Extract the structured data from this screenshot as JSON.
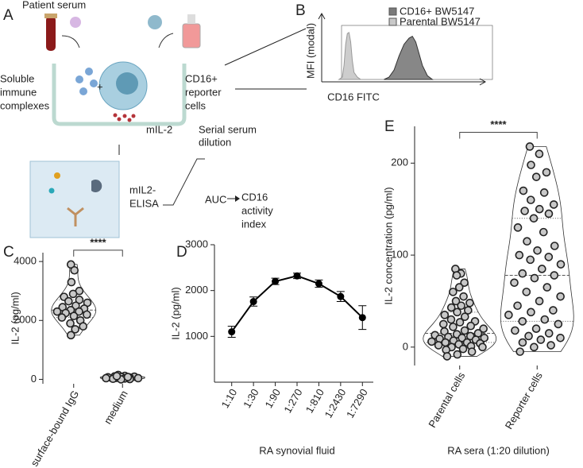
{
  "diagram": {
    "panel": "A",
    "patient_serum": "Patient serum",
    "immune_complexes": [
      "Soluble",
      "immune",
      "complexes"
    ],
    "reporter_cells": [
      "CD16+",
      "reporter",
      "cells"
    ],
    "mil2": "mIL-2",
    "serial_dilution": [
      "Serial serum",
      "dilution"
    ],
    "elisa": [
      "mIL2-",
      "ELISA"
    ],
    "auc": "AUC",
    "index": [
      "CD16",
      "activity",
      "index"
    ]
  },
  "chart_data": [
    {
      "type": "histogram-overlay",
      "panel": "B",
      "y_label": "MFI (modal)",
      "x_label": "CD16 FITC",
      "xlim": [
        0,
        100
      ],
      "ylim": [
        0,
        105
      ],
      "series": [
        {
          "name": "CD16+ BW5147",
          "color": "#7a7a7a",
          "x": [
            35,
            38,
            41,
            44,
            47,
            50,
            52,
            54,
            56,
            58,
            61,
            64
          ],
          "values": [
            0,
            5,
            20,
            50,
            75,
            88,
            92,
            80,
            55,
            30,
            8,
            0
          ]
        },
        {
          "name": "Parental BW5147",
          "color": "#c8c8c8",
          "x": [
            8,
            10,
            11,
            12,
            13,
            14,
            15,
            16,
            17,
            19,
            21
          ],
          "values": [
            0,
            5,
            30,
            75,
            98,
            100,
            80,
            40,
            15,
            5,
            0
          ]
        }
      ]
    },
    {
      "type": "violin",
      "panel": "C",
      "y_label": "IL-2 (pg/ml)",
      "significance": "****",
      "ylim": [
        -150,
        4300
      ],
      "yticks": [
        0,
        2000,
        4000
      ],
      "categories": [
        "surface-bound IgG",
        "medium"
      ],
      "series": [
        {
          "name": null,
          "color": "#c8c8c8",
          "values": [
            3900,
            3700,
            3300,
            3000,
            2900,
            2800,
            2700,
            2650,
            2600,
            2500,
            2450,
            2400,
            2350,
            2300,
            2300,
            2250,
            2200,
            2150,
            2100,
            2000,
            1900,
            1800,
            1700,
            1500
          ]
        },
        {
          "name": null,
          "color": "#c8c8c8",
          "values": [
            150,
            120,
            100,
            90,
            80,
            70,
            60,
            50,
            40,
            30,
            20,
            10,
            0,
            40,
            80,
            110
          ]
        }
      ]
    },
    {
      "type": "line-error",
      "panel": "D",
      "y_label": "IL-2 (pg/ml)",
      "x_label": "RA synovial fluid",
      "ylim": [
        0,
        3000
      ],
      "yticks": [
        1000,
        2000,
        3000
      ],
      "categories": [
        "1:10",
        "1:30",
        "1:90",
        "1:270",
        "1:810",
        "1:2430",
        "1:7290"
      ],
      "values": [
        1100,
        1760,
        2200,
        2320,
        2150,
        1870,
        1410
      ],
      "errors": [
        120,
        100,
        70,
        60,
        80,
        110,
        260
      ],
      "color": "#000000"
    },
    {
      "type": "violin",
      "panel": "E",
      "y_label": "IL-2 concentration (pg/ml)",
      "x_label": "RA sera (1:20 dilution)",
      "significance": "****",
      "ylim": [
        -20,
        240
      ],
      "yticks": [
        0,
        100,
        200
      ],
      "categories": [
        "Parental cells",
        "Reporter cells"
      ],
      "series": [
        {
          "name": null,
          "color": "#c8c8c8",
          "values": [
            85,
            80,
            78,
            70,
            65,
            60,
            55,
            50,
            48,
            45,
            43,
            40,
            38,
            35,
            33,
            30,
            28,
            27,
            25,
            23,
            22,
            20,
            18,
            17,
            15,
            14,
            13,
            12,
            11,
            10,
            10,
            9,
            8,
            7,
            6,
            5,
            5,
            4,
            3,
            2,
            1,
            0,
            0,
            -2,
            -3,
            -5,
            -8,
            -10
          ]
        },
        {
          "name": null,
          "color": "#c8c8c8",
          "values": [
            218,
            210,
            198,
            190,
            185,
            170,
            168,
            160,
            155,
            150,
            148,
            145,
            140,
            130,
            125,
            115,
            110,
            105,
            100,
            98,
            95,
            90,
            85,
            80,
            78,
            75,
            70,
            65,
            60,
            55,
            50,
            45,
            40,
            38,
            35,
            30,
            28,
            25,
            20,
            18,
            15,
            12,
            10,
            8,
            5,
            2,
            0,
            -5
          ]
        }
      ]
    }
  ]
}
